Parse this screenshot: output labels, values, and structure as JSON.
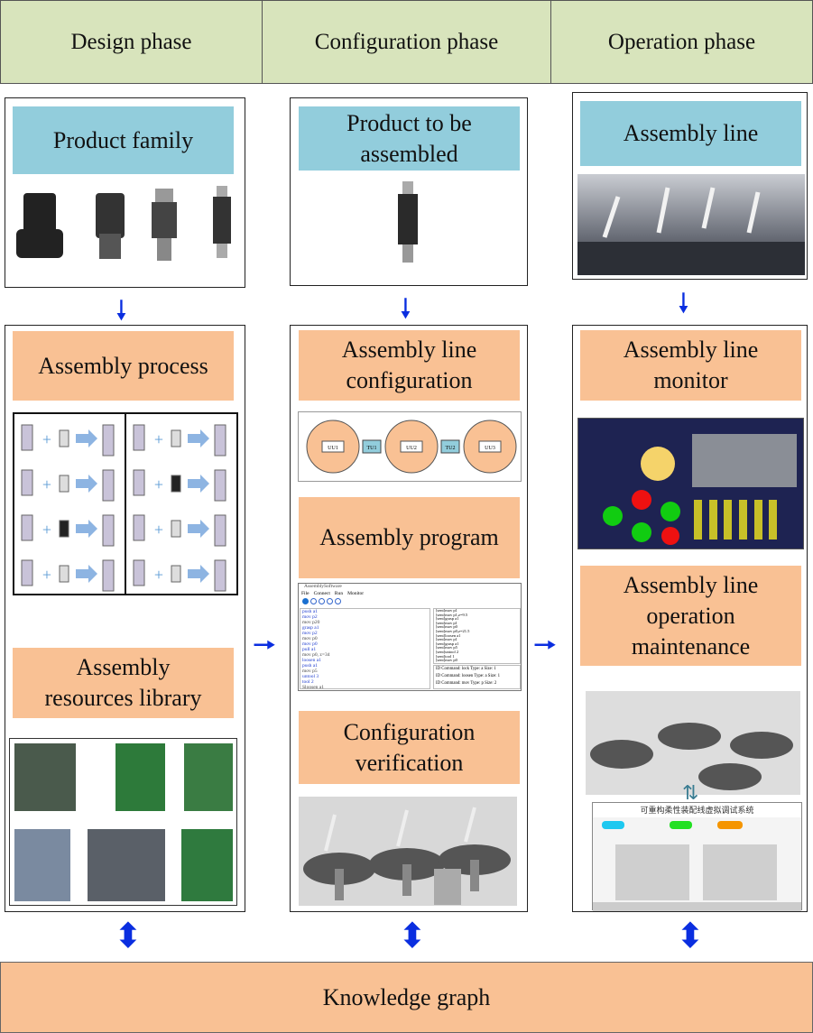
{
  "phases": [
    "Design phase",
    "Configuration phase",
    "Operation phase"
  ],
  "design": {
    "top_title": "Product family",
    "process_title": "Assembly process",
    "resources_title": "Assembly\nresources library"
  },
  "configuration": {
    "top_title": "Product to be\nassembled",
    "config_title": "Assembly line\nconfiguration",
    "program_title": "Assembly program",
    "verify_title": "Configuration\nverification",
    "layout_units": [
      "UU1",
      "TU1",
      "UU2",
      "TU2",
      "UU3"
    ],
    "software": {
      "title": "AssemblySoftware",
      "menu": [
        "File",
        "Connect",
        "Run",
        "Monitor"
      ],
      "code": [
        "push a1",
        "mov p2",
        "mov p20",
        "grasp a1",
        "mov p2",
        "mov p0",
        "mov p0",
        "pull a1",
        "mov p0, z=34",
        "loosen a1",
        "push a1",
        "mov p5",
        "untool 3",
        "tool 2",
        "Sloosen a1"
      ],
      "log": [
        "[sent]mov p1",
        "[sent]mov p1,z=9.5",
        "[sent]grasp a1",
        "[sent]mov p1",
        "[sent]mov p0",
        "[sent]mov p0,z=21.5",
        "[sent]loosen a1",
        "[sent]mov p1",
        "[sent]grasp a1",
        "[sent]mov p5",
        "[sent]untool 2",
        "[sent]tool 1",
        "[sent]mov p0"
      ],
      "status": [
        "ID Command: lock   Type: a   Size: 1",
        "ID Command: loosen   Type: a   Size: 1",
        "ID Command: mov   Type: p   Size: 2"
      ]
    }
  },
  "operation": {
    "top_title": "Assembly line",
    "monitor_title": "Assembly line\nmonitor",
    "maint_title": "Assembly line\noperation\nmaintenance",
    "panel_title": "可重构柔性装配线虚拟调试系统"
  },
  "knowledge": "Knowledge graph",
  "colors": {
    "header": "#d8e4bc",
    "blue_title": "#92cddc",
    "peach_title": "#f9c194",
    "arrow": "#0a2ee0"
  }
}
